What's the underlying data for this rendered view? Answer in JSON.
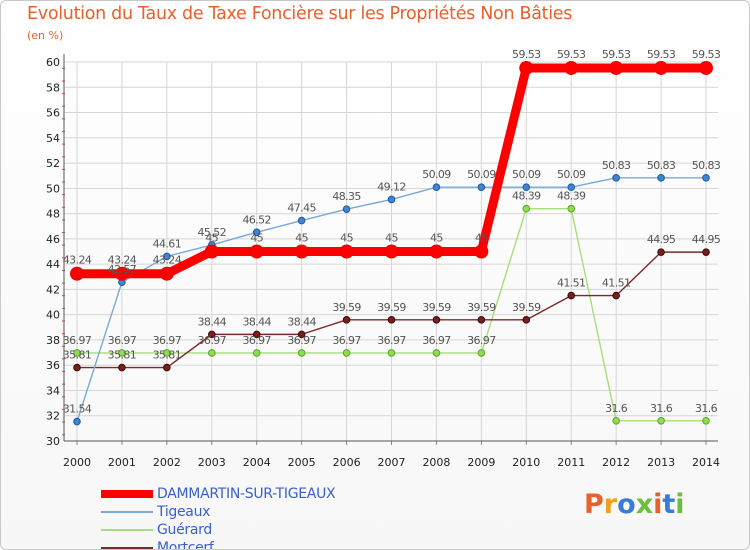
{
  "chart_data": {
    "type": "line",
    "title": "Evolution du Taux de Taxe Foncière sur les Propriétés Non Bâties",
    "ylabel": "(en %)",
    "xlabel": "",
    "ylim": [
      30,
      60
    ],
    "yticks": [
      30,
      32,
      34,
      36,
      38,
      40,
      42,
      44,
      46,
      48,
      50,
      52,
      54,
      56,
      58,
      60
    ],
    "categories": [
      "2000",
      "2001",
      "2002",
      "2003",
      "2004",
      "2005",
      "2006",
      "2007",
      "2008",
      "2009",
      "2010",
      "2011",
      "2012",
      "2013",
      "2014"
    ],
    "grid": true,
    "legend_position": "bottom-left",
    "series": [
      {
        "name": "DAMMARTIN-SUR-TIGEAUX",
        "color": "#ff0000",
        "values": [
          43.24,
          43.24,
          43.24,
          45,
          45,
          45,
          45,
          45,
          45,
          45,
          59.53,
          59.53,
          59.53,
          59.53,
          59.53
        ],
        "labels": [
          "43.24",
          "43.24",
          "43.24",
          "45",
          "45",
          "45",
          "45",
          "45",
          "45",
          "45",
          "59.53",
          "59.53",
          "59.53",
          "59.53",
          "59.53"
        ]
      },
      {
        "name": "Tigeaux",
        "color": "#6fa1d6",
        "values": [
          31.54,
          42.57,
          44.61,
          45.52,
          46.52,
          47.45,
          48.35,
          49.12,
          50.09,
          50.09,
          50.09,
          50.09,
          50.83,
          50.83,
          50.83
        ],
        "labels": [
          "31.54",
          "42.57",
          "44.61",
          "45.52",
          "46.52",
          "47.45",
          "48.35",
          "49.12",
          "50.09",
          "50.09",
          "50.09",
          "50.09",
          "50.83",
          "50.83",
          "50.83"
        ]
      },
      {
        "name": "Guérard",
        "color": "#99dd66",
        "values": [
          36.97,
          36.97,
          36.97,
          36.97,
          36.97,
          36.97,
          36.97,
          36.97,
          36.97,
          36.97,
          48.39,
          48.39,
          31.6,
          31.6,
          31.6
        ],
        "labels": [
          "36.97",
          "36.97",
          "36.97",
          "36.97",
          "36.97",
          "36.97",
          "36.97",
          "36.97",
          "36.97",
          "36.97",
          "48.39",
          "48.39",
          "31.6",
          "31.6",
          "31.6"
        ]
      },
      {
        "name": "Mortcerf",
        "color": "#7a2a2a",
        "values": [
          35.81,
          35.81,
          35.81,
          38.44,
          38.44,
          38.44,
          39.59,
          39.59,
          39.59,
          39.59,
          39.59,
          41.51,
          41.51,
          44.95,
          44.95
        ],
        "labels": [
          "35.81",
          "35.81",
          "35.81",
          "38.44",
          "38.44",
          "38.44",
          "39.59",
          "39.59",
          "39.59",
          "39.59",
          "39.59",
          "41.51",
          "41.51",
          "44.95",
          "44.95"
        ]
      }
    ]
  },
  "logo": {
    "text": "Proxiti",
    "colors": [
      "#e8602a",
      "#f0a020",
      "#3a7bd5",
      "#6cbf3a",
      "#e8602a",
      "#3a7bd5",
      "#6cbf3a"
    ]
  }
}
